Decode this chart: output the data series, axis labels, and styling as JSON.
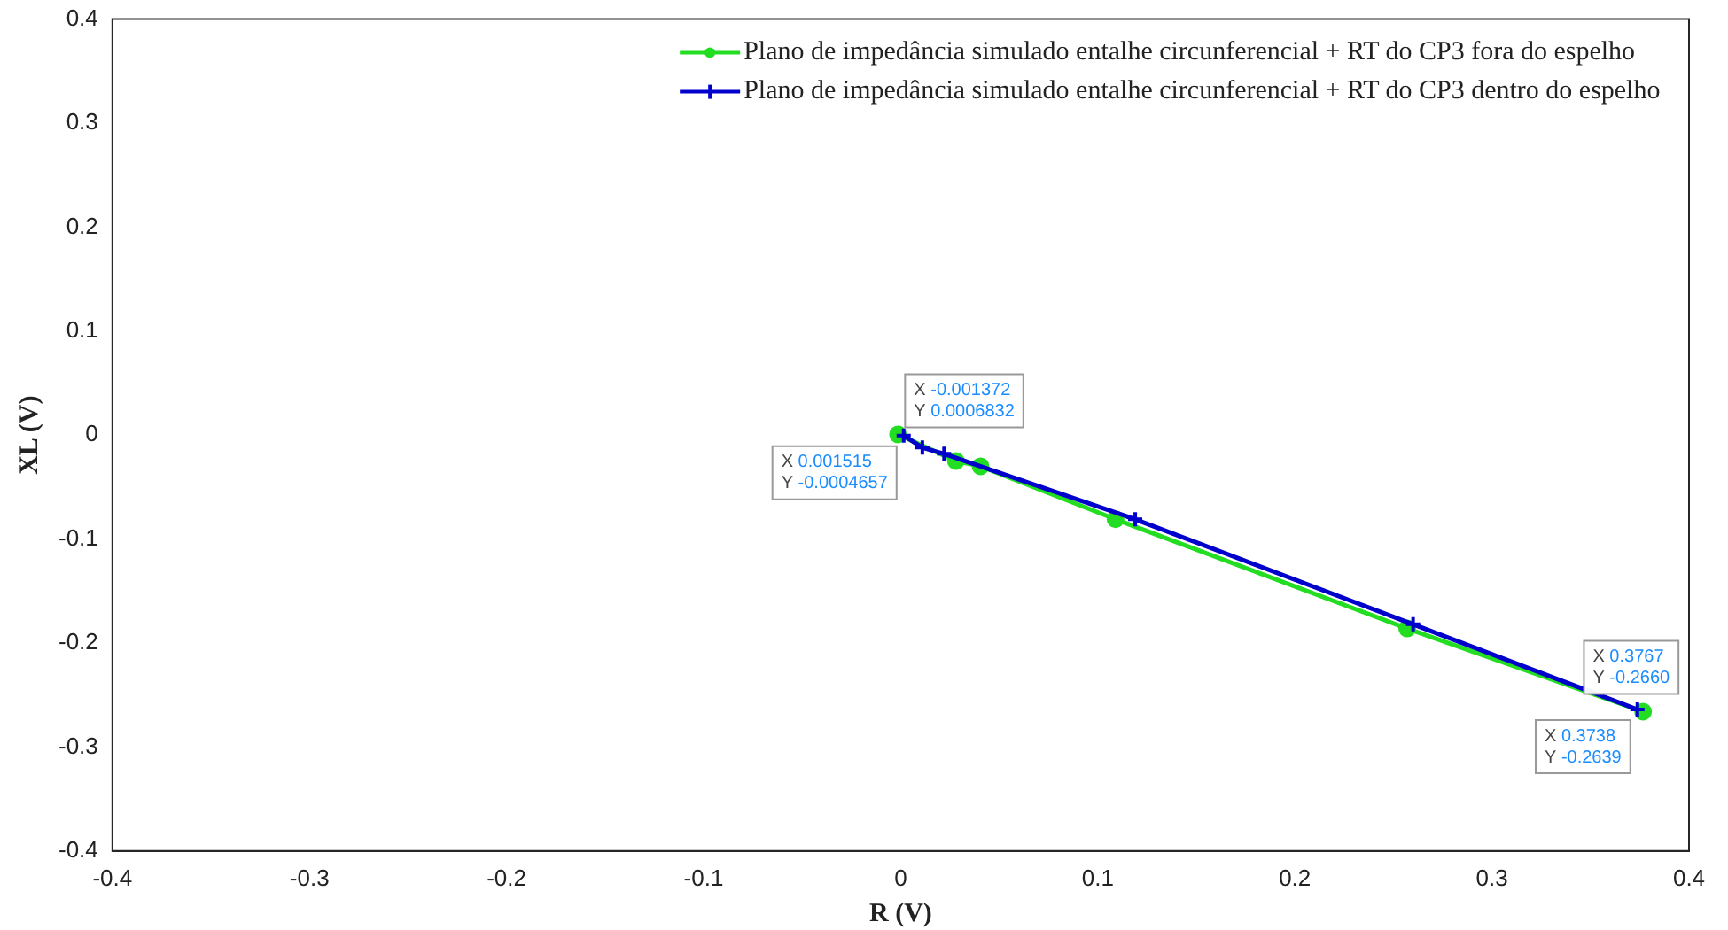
{
  "chart_data": {
    "type": "line",
    "xlabel": "R (V)",
    "ylabel": "XL (V)",
    "xlim": [
      -0.4,
      0.4
    ],
    "xticks": [
      -0.4,
      -0.3,
      -0.2,
      -0.1,
      0,
      0.1,
      0.2,
      0.3,
      0.4
    ],
    "ylim": [
      -0.4,
      0.4
    ],
    "yticks": [
      -0.4,
      -0.3,
      -0.2,
      -0.1,
      0,
      0.1,
      0.2,
      0.3,
      0.4
    ],
    "grid": false,
    "legend": "top right",
    "line_style": "solid",
    "series": [
      {
        "name": "Plano de impedância simulado entalhe circunferencial + RT do CP3 fora do espelho",
        "color": "#22dd22",
        "marker": "circle",
        "x": [
          -0.001372,
          0.028,
          0.0405,
          0.109,
          0.257,
          0.3767
        ],
        "values": [
          0.0006832,
          -0.025,
          -0.03,
          -0.081,
          -0.186,
          -0.266
        ]
      },
      {
        "name": "Plano de impedância simulado entalhe circunferencial + RT do CP3 dentro do espelho",
        "color": "#0000cc",
        "marker": "cross",
        "x": [
          0.001515,
          0.011,
          0.022,
          0.119,
          0.26,
          0.3738
        ],
        "values": [
          -0.0004657,
          -0.012,
          -0.018,
          -0.081,
          -0.182,
          -0.2639
        ]
      }
    ],
    "annotations": [
      {
        "text": "X -0.001372\nY 0.0006832",
        "x": -0.001372,
        "y": 0.0006832
      },
      {
        "text": "X 0.001515\nY -0.0004657",
        "x": 0.001515,
        "y": -0.0004657
      },
      {
        "text": "X 0.3767\nY -0.2660",
        "x": 0.3767,
        "y": -0.266
      },
      {
        "text": "X 0.3738\nY -0.2639",
        "x": 0.3738,
        "y": -0.2639
      }
    ]
  }
}
